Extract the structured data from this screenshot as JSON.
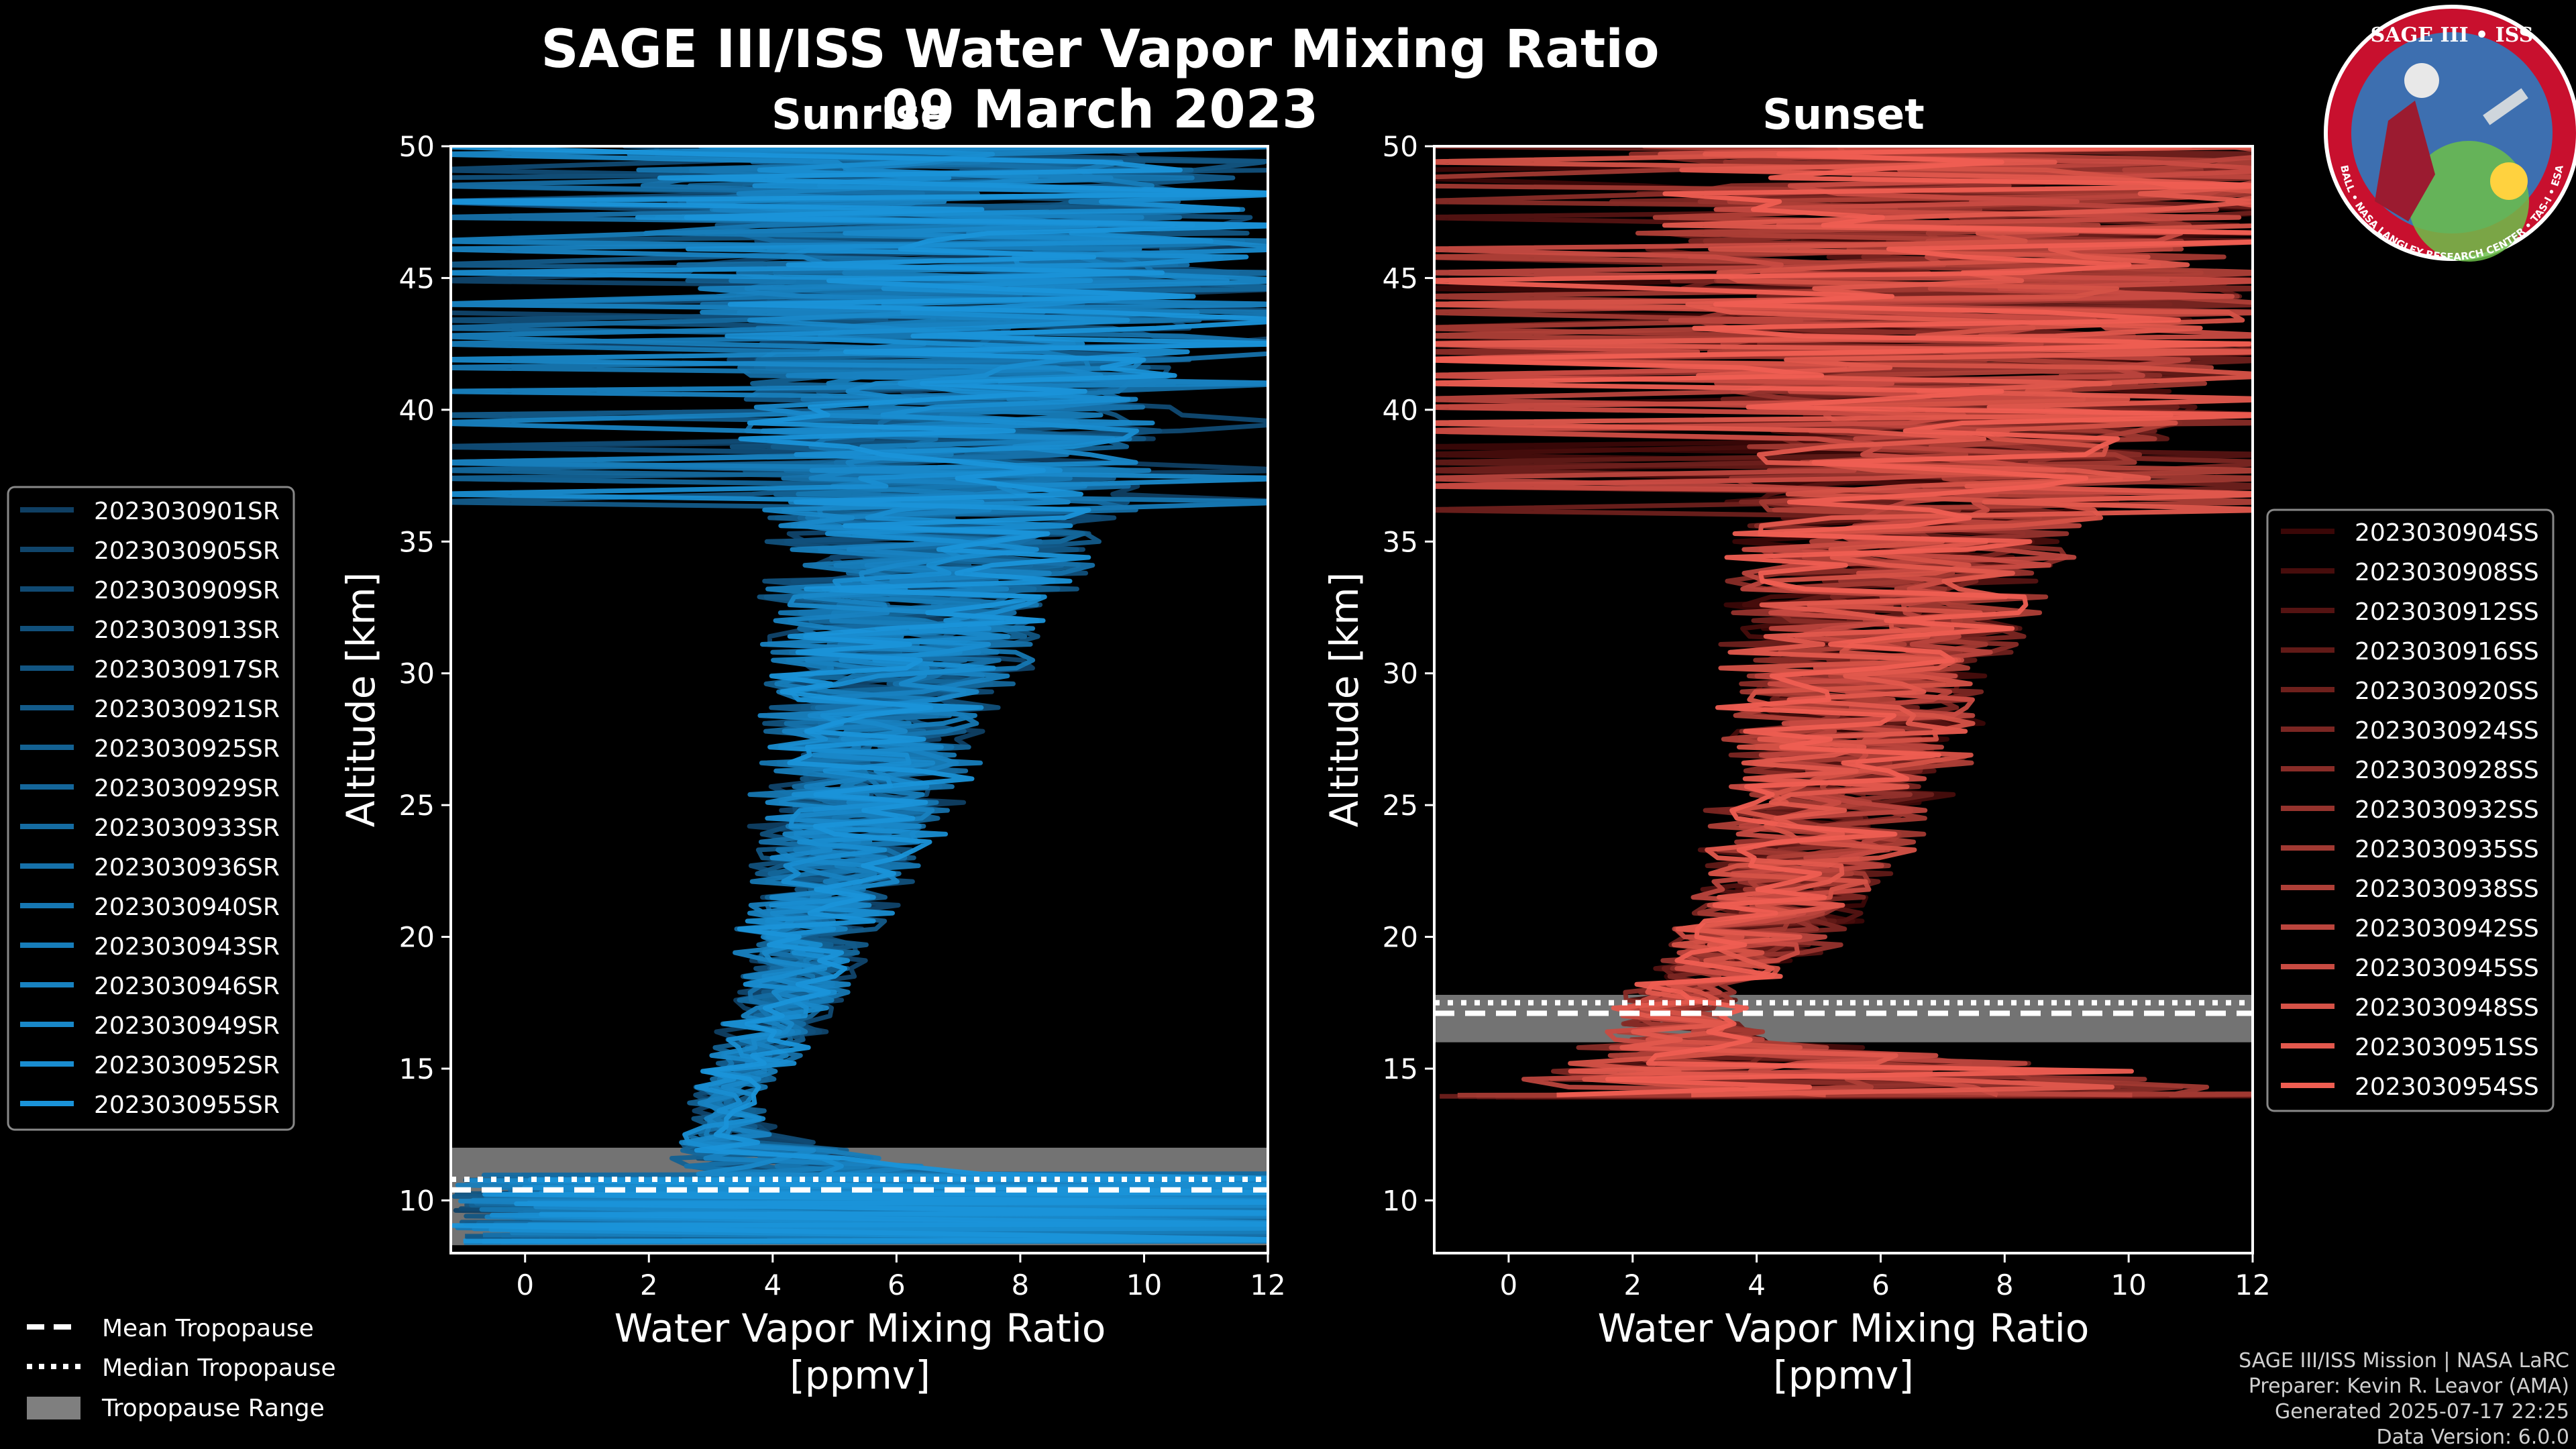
{
  "header": {
    "title": "SAGE III/ISS Water Vapor Mixing Ratio",
    "date": "09 March 2023",
    "sunrise_label": "Sunrise",
    "sunset_label": "Sunset"
  },
  "logo": {
    "text_top": "SAGE III • ISS",
    "text_ring": "BALL • NASA LANGLEY RESEARCH CENTER • TAS-I • ESA"
  },
  "colors": {
    "sunrise_light": "#1a93d9",
    "sunrise_dark": "#0f3f63",
    "sunset_light": "#ef5e52",
    "sunset_dark": "#3a0707",
    "tropo_range": "#7f7f7f",
    "axis": "#ffffff",
    "background": "#000000"
  },
  "chart_data": [
    {
      "type": "line",
      "panel": "sunrise",
      "title": "Sunrise",
      "xlabel": "Water Vapor Mixing Ratio",
      "xlabel_units": "[ppmv]",
      "ylabel": "Altitude [km]",
      "xlim": [
        -1.2,
        12
      ],
      "ylim": [
        8,
        50
      ],
      "xticks": [
        0,
        2,
        4,
        6,
        8,
        10,
        12
      ],
      "yticks": [
        10,
        15,
        20,
        25,
        30,
        35,
        40,
        45,
        50
      ],
      "profile_shape": {
        "altitudes": [
          11,
          12,
          13,
          14,
          15,
          16,
          17,
          18,
          20,
          22,
          25,
          30,
          35,
          40,
          45,
          50
        ],
        "median_ppmv": [
          5.0,
          3.6,
          3.2,
          3.2,
          3.5,
          3.9,
          4.1,
          4.3,
          4.6,
          4.9,
          5.4,
          6.0,
          6.6,
          7.0,
          7.0,
          6.8
        ],
        "spread_ppmv": [
          2.5,
          1.2,
          0.5,
          0.4,
          0.5,
          0.6,
          0.7,
          0.8,
          1.0,
          1.2,
          1.5,
          2.0,
          2.7,
          3.5,
          4.5,
          5.5
        ]
      },
      "tropopause": {
        "mean_km": 10.4,
        "median_km": 10.8,
        "range_km": [
          8.3,
          12.0
        ]
      },
      "legend_title": "",
      "series": [
        {
          "name": "2023030901SR"
        },
        {
          "name": "2023030905SR"
        },
        {
          "name": "2023030909SR"
        },
        {
          "name": "2023030913SR"
        },
        {
          "name": "2023030917SR"
        },
        {
          "name": "2023030921SR"
        },
        {
          "name": "2023030925SR"
        },
        {
          "name": "2023030929SR"
        },
        {
          "name": "2023030933SR"
        },
        {
          "name": "2023030936SR"
        },
        {
          "name": "2023030940SR"
        },
        {
          "name": "2023030943SR"
        },
        {
          "name": "2023030946SR"
        },
        {
          "name": "2023030949SR"
        },
        {
          "name": "2023030952SR"
        },
        {
          "name": "2023030955SR"
        }
      ]
    },
    {
      "type": "line",
      "panel": "sunset",
      "title": "Sunset",
      "xlabel": "Water Vapor Mixing Ratio",
      "xlabel_units": "[ppmv]",
      "ylabel": "Altitude [km]",
      "xlim": [
        -1.2,
        12
      ],
      "ylim": [
        8,
        50
      ],
      "xticks": [
        0,
        2,
        4,
        6,
        8,
        10,
        12
      ],
      "yticks": [
        10,
        15,
        20,
        25,
        30,
        35,
        40,
        45,
        50
      ],
      "profile_shape": {
        "altitudes": [
          14,
          15,
          16,
          17,
          18,
          19,
          20,
          22,
          25,
          30,
          35,
          40,
          45,
          50
        ],
        "median_ppmv": [
          6.0,
          5.0,
          3.0,
          2.6,
          3.0,
          3.6,
          4.0,
          4.6,
          5.2,
          5.8,
          6.5,
          7.2,
          7.5,
          7.5
        ],
        "spread_ppmv": [
          6.0,
          5.0,
          1.5,
          1.0,
          1.0,
          1.2,
          1.3,
          1.5,
          1.8,
          2.2,
          2.8,
          3.8,
          5.0,
          6.0
        ]
      },
      "tropopause": {
        "mean_km": 17.1,
        "median_km": 17.5,
        "range_km": [
          16.0,
          17.8
        ]
      },
      "series": [
        {
          "name": "2023030904SS"
        },
        {
          "name": "2023030908SS"
        },
        {
          "name": "2023030912SS"
        },
        {
          "name": "2023030916SS"
        },
        {
          "name": "2023030920SS"
        },
        {
          "name": "2023030924SS"
        },
        {
          "name": "2023030928SS"
        },
        {
          "name": "2023030932SS"
        },
        {
          "name": "2023030935SS"
        },
        {
          "name": "2023030938SS"
        },
        {
          "name": "2023030942SS"
        },
        {
          "name": "2023030945SS"
        },
        {
          "name": "2023030948SS"
        },
        {
          "name": "2023030951SS"
        },
        {
          "name": "2023030954SS"
        }
      ]
    }
  ],
  "tropopause_legend": {
    "mean": "Mean Tropopause",
    "median": "Median Tropopause",
    "range": "Tropopause Range"
  },
  "footer": {
    "line1": "SAGE III/ISS Mission | NASA LaRC",
    "line2": "Preparer: Kevin R. Leavor (AMA)",
    "line3": "Generated 2025-07-17 22:25",
    "line4": "Data Version: 6.0.0"
  }
}
